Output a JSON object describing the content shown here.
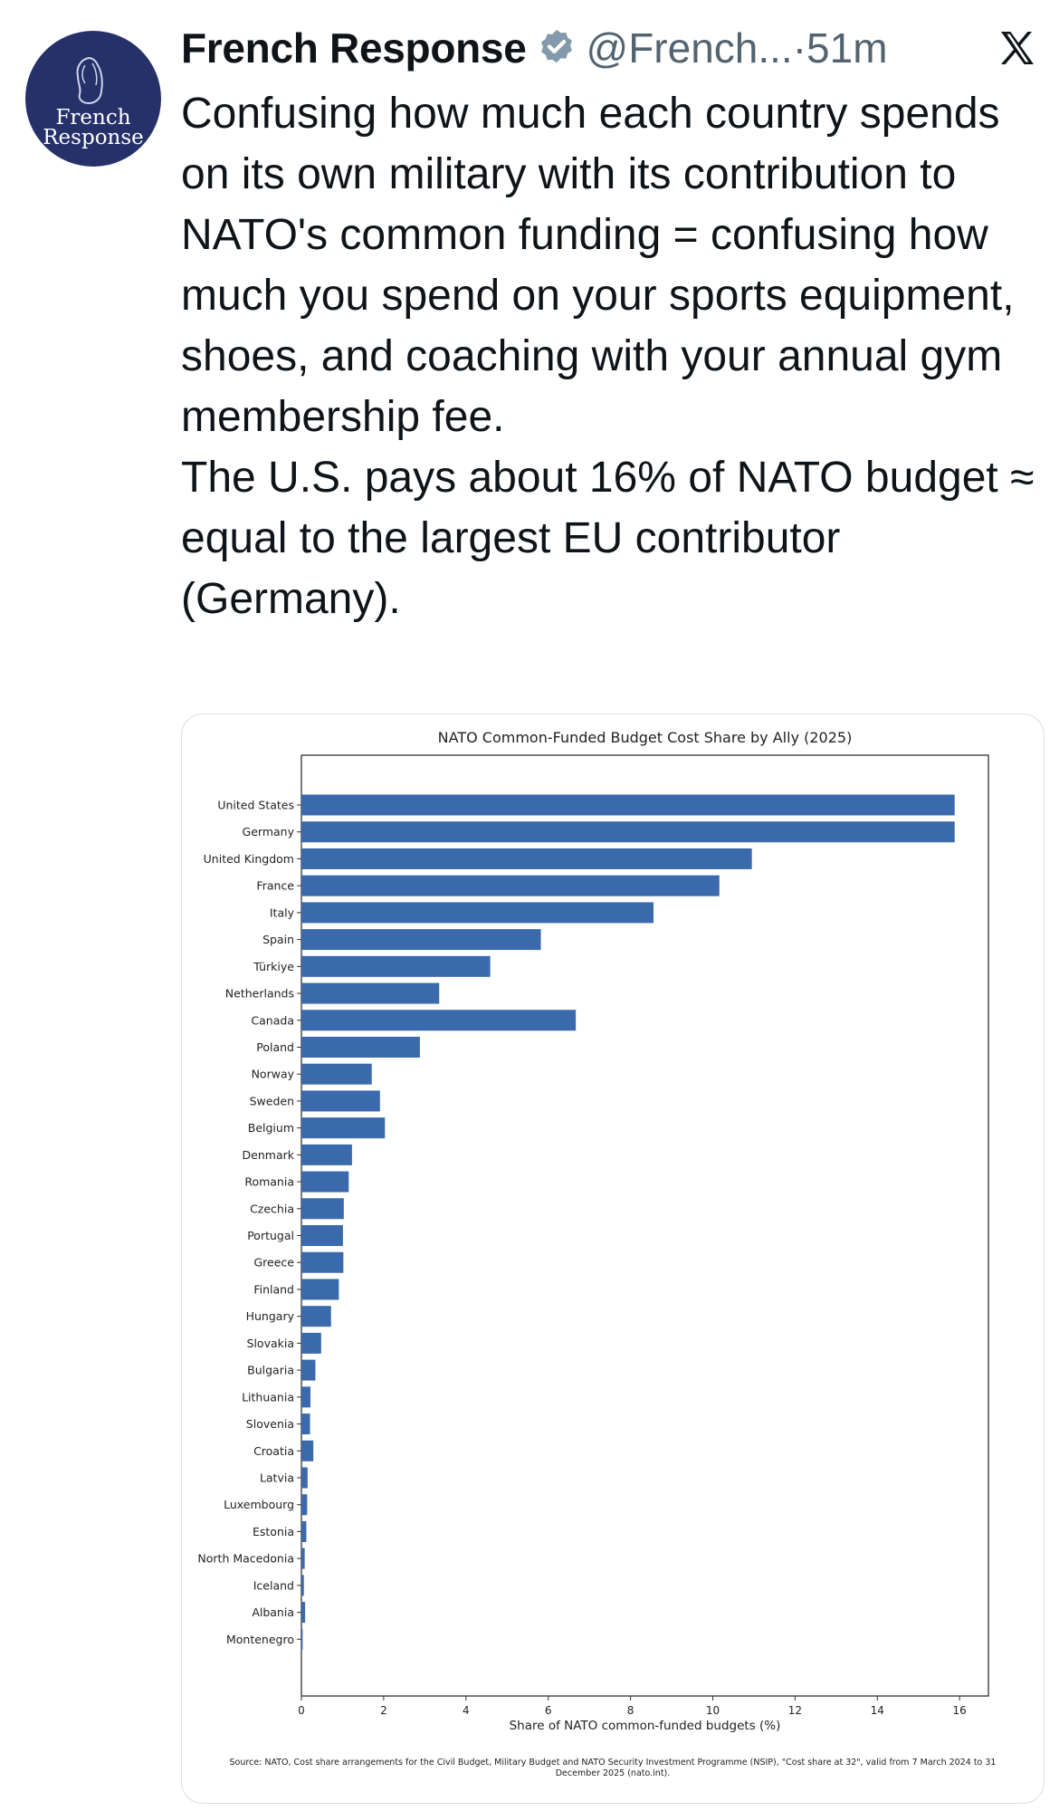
{
  "tweet": {
    "author": {
      "display_name": "French Response",
      "handle": "@French...",
      "verified": true,
      "avatar_text_line1": "French",
      "avatar_text_line2": "Response",
      "avatar_color": "#26316a"
    },
    "separator": "·",
    "time": "51m",
    "platform_icon": "x-logo-icon",
    "text": "Confusing how much each country spends on its own military with its contribution to NATO's common funding = confusing how much you spend on your sports equipment, shoes, and coaching with your annual gym membership fee.\nThe U.S. pays about 16% of NATO budget ≈ equal to the largest EU contributor (Germany)."
  },
  "chart_data": {
    "type": "bar",
    "orientation": "horizontal",
    "title": "NATO Common-Funded Budget Cost Share by Ally (2025)",
    "xlabel": "Share of NATO common-funded budgets (%)",
    "ylabel": "",
    "xlim": [
      0,
      16.7
    ],
    "xticks": [
      0,
      2,
      4,
      6,
      8,
      10,
      12,
      14,
      16
    ],
    "bar_color": "#3a6aab",
    "grid": false,
    "categories": [
      "United States",
      "Germany",
      "United Kingdom",
      "France",
      "Italy",
      "Spain",
      "Türkiye",
      "Netherlands",
      "Canada",
      "Poland",
      "Norway",
      "Sweden",
      "Belgium",
      "Denmark",
      "Romania",
      "Czechia",
      "Portugal",
      "Greece",
      "Finland",
      "Hungary",
      "Slovakia",
      "Bulgaria",
      "Lithuania",
      "Slovenia",
      "Croatia",
      "Latvia",
      "Luxembourg",
      "Estonia",
      "North Macedonia",
      "Iceland",
      "Albania",
      "Montenegro"
    ],
    "values": [
      15.88,
      15.88,
      10.95,
      10.16,
      8.56,
      5.82,
      4.59,
      3.35,
      6.67,
      2.88,
      1.71,
      1.91,
      2.03,
      1.23,
      1.15,
      1.03,
      1.01,
      1.02,
      0.91,
      0.72,
      0.48,
      0.34,
      0.22,
      0.21,
      0.29,
      0.15,
      0.14,
      0.12,
      0.08,
      0.06,
      0.09,
      0.03
    ],
    "source": "Source: NATO, Cost share arrangements for the Civil Budget, Military Budget and NATO Security Investment Programme (NSIP), \"Cost share at 32\", valid from 7 March 2024 to 31 December 2025 (nato.int)."
  }
}
